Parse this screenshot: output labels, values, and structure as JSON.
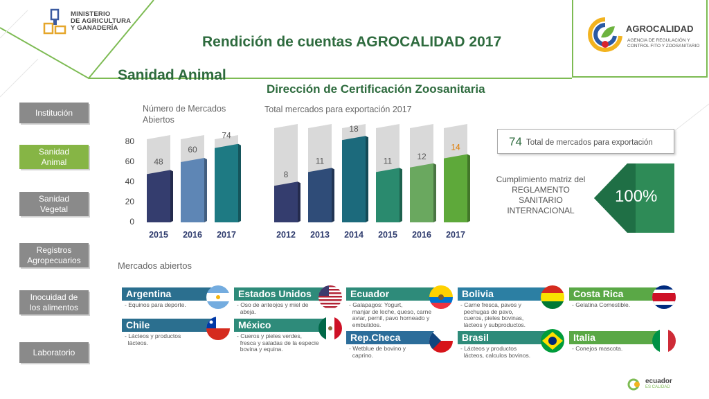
{
  "header": {
    "ministry_lines": [
      "MINISTERIO",
      "DE AGRICULTURA",
      "Y GANADERÍA"
    ],
    "agency_name": "AGROCALIDAD",
    "agency_sub_lines": [
      "AGENCIA DE REGULACIÓN Y",
      "CONTROL FITO Y ZOOSANITARIO"
    ],
    "title": "Rendición de cuentas AGROCALIDAD 2017",
    "section": "Sanidad Animal",
    "subsection": "Dirección de Certificación Zoosanitaria"
  },
  "nav": {
    "items": [
      {
        "label_lines": [
          "Institución"
        ],
        "active": false
      },
      {
        "label_lines": [
          "Sanidad",
          "Animal"
        ],
        "active": true
      },
      {
        "label_lines": [
          "Sanidad",
          "Vegetal"
        ],
        "active": false
      },
      {
        "label_lines": [
          "Registros",
          "Agropecuarios"
        ],
        "active": false
      },
      {
        "label_lines": [
          "Inocuidad de",
          "los alimentos"
        ],
        "active": false
      },
      {
        "label_lines": [
          "Laboratorio"
        ],
        "active": false
      }
    ]
  },
  "chart_data": [
    {
      "type": "bar",
      "title_lines": [
        "Número de Mercados",
        "Abiertos"
      ],
      "categories": [
        "2015",
        "2016",
        "2017"
      ],
      "values": [
        48,
        60,
        74
      ],
      "yticks": [
        0,
        20,
        40,
        60,
        80
      ],
      "ylim": [
        0,
        80
      ],
      "colors": [
        "#343d6e",
        "#5e86b5",
        "#1e7a83"
      ]
    },
    {
      "type": "bar",
      "title": "Total mercados para exportación 2017",
      "categories": [
        "2012",
        "2013",
        "2014",
        "2015",
        "2016",
        "2017"
      ],
      "values": [
        8,
        11,
        18,
        11,
        12,
        14
      ],
      "ylim": [
        0,
        20
      ],
      "colors": [
        "#343d6e",
        "#2f4c78",
        "#1c6a7c",
        "#2a8a6e",
        "#6aa85f",
        "#5ea93a"
      ],
      "label_colors": [
        "#555",
        "#555",
        "#555",
        "#555",
        "#555",
        "#e07b00"
      ]
    }
  ],
  "summary": {
    "total_value": "74",
    "total_label": "Total de mercados para exportación",
    "cumplimiento_lines": [
      "Cumplimiento matriz del",
      "REGLAMENTO",
      "SANITARIO",
      "INTERNACIONAL"
    ],
    "percent": "100%"
  },
  "markets": {
    "title": "Mercados abiertos",
    "cards": [
      {
        "country": "Argentina",
        "lines": [
          "- Equinos para deporte."
        ],
        "color": "#2b6f8f",
        "flag": "argentina"
      },
      {
        "country": "Estados Unidos",
        "lines": [
          "- Oso de anteojos y miel de",
          "  abeja."
        ],
        "color": "#2e8b7a",
        "flag": "usa"
      },
      {
        "country": "Ecuador",
        "lines": [
          "- Galapagos: Yogurt,",
          "  manjar de leche, queso, carne",
          "  aviar, pernil, pavo horneado y",
          "  embutidos."
        ],
        "color": "#2e8b7a",
        "flag": "ecuador"
      },
      {
        "country": "Bolivia",
        "lines": [
          "- Carne fresca, pavos y",
          "  pechugas de pavo,",
          "  cueros, pieles bovinas,",
          "  lácteos y subproductos."
        ],
        "color": "#2c7fa3",
        "flag": "bolivia"
      },
      {
        "country": "Costa Rica",
        "lines": [
          "- Gelatina Comestible."
        ],
        "color": "#5aa846",
        "flag": "costarica"
      },
      {
        "country": "Chile",
        "lines": [
          "- Lácteos y productos",
          "  lácteos."
        ],
        "color": "#2b6f8f",
        "flag": "chile"
      },
      {
        "country": "México",
        "lines": [
          "- Cueros y pieles verdes,",
          "  fresca y saladas de la especie",
          "  bovina y equina."
        ],
        "color": "#2e8b7a",
        "flag": "mexico"
      },
      {
        "country": "Rep.Checa",
        "lines": [
          "- Wetblue de bovino y",
          "  caprino."
        ],
        "color": "#2c6d9a",
        "flag": "czech"
      },
      {
        "country": "Brasil",
        "lines": [
          "- Lácteos y productos",
          "  lácteos, calculos bovinos."
        ],
        "color": "#2e8b7a",
        "flag": "brazil"
      },
      {
        "country": "Italia",
        "lines": [
          "- Conejos mascota."
        ],
        "color": "#5aa846",
        "flag": "italy"
      }
    ]
  },
  "footer": {
    "logo_lines": [
      "ecuador",
      "ES CALIDAD"
    ]
  }
}
